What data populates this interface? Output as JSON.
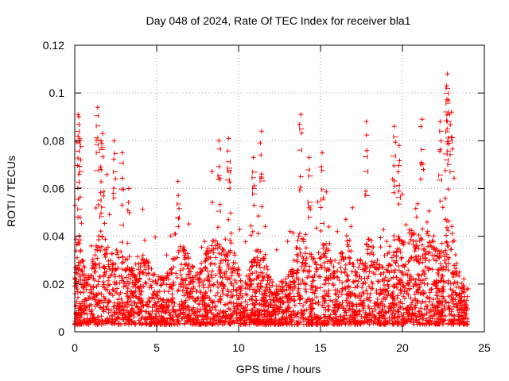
{
  "chart_data": {
    "type": "scatter",
    "title": "Day 048 of 2024, Rate Of TEC Index for receiver bla1",
    "xlabel": "GPS time / hours",
    "ylabel": "ROTI / TECUs",
    "xlim": [
      0,
      25
    ],
    "ylim": [
      0,
      0.12
    ],
    "xticks": [
      0,
      5,
      10,
      15,
      20,
      25
    ],
    "xtick_labels": [
      "0",
      "5",
      "10",
      "15",
      "20",
      "25"
    ],
    "yticks": [
      0,
      0.02,
      0.04,
      0.06,
      0.08,
      0.1,
      0.12
    ],
    "ytick_labels": [
      "0",
      "0.02",
      "0.04",
      "0.06",
      "0.08",
      "0.1",
      "0.12"
    ],
    "grid": true,
    "marker": "+",
    "color": "#ff0000",
    "series": [
      {
        "name": "ROTI",
        "points_summary": "dense scatter of several thousand samples over 0-24 h, bulk between 0.005 and 0.03 TECU/min",
        "peaks": [
          {
            "x": 0.2,
            "y": 0.091
          },
          {
            "x": 0.25,
            "y": 0.09
          },
          {
            "x": 0.3,
            "y": 0.08
          },
          {
            "x": 1.4,
            "y": 0.094
          },
          {
            "x": 1.6,
            "y": 0.08
          },
          {
            "x": 1.7,
            "y": 0.083
          },
          {
            "x": 2.4,
            "y": 0.08
          },
          {
            "x": 2.9,
            "y": 0.075
          },
          {
            "x": 3.3,
            "y": 0.06
          },
          {
            "x": 6.3,
            "y": 0.063
          },
          {
            "x": 8.8,
            "y": 0.08
          },
          {
            "x": 9.4,
            "y": 0.081
          },
          {
            "x": 10.9,
            "y": 0.073
          },
          {
            "x": 11.4,
            "y": 0.084
          },
          {
            "x": 13.8,
            "y": 0.091
          },
          {
            "x": 14.3,
            "y": 0.073
          },
          {
            "x": 15.1,
            "y": 0.075
          },
          {
            "x": 17.8,
            "y": 0.088
          },
          {
            "x": 19.5,
            "y": 0.086
          },
          {
            "x": 19.8,
            "y": 0.078
          },
          {
            "x": 21.2,
            "y": 0.089
          },
          {
            "x": 22.3,
            "y": 0.088
          },
          {
            "x": 22.7,
            "y": 0.103
          },
          {
            "x": 22.75,
            "y": 0.108
          },
          {
            "x": 22.8,
            "y": 0.097
          },
          {
            "x": 23.0,
            "y": 0.092
          }
        ]
      }
    ]
  }
}
